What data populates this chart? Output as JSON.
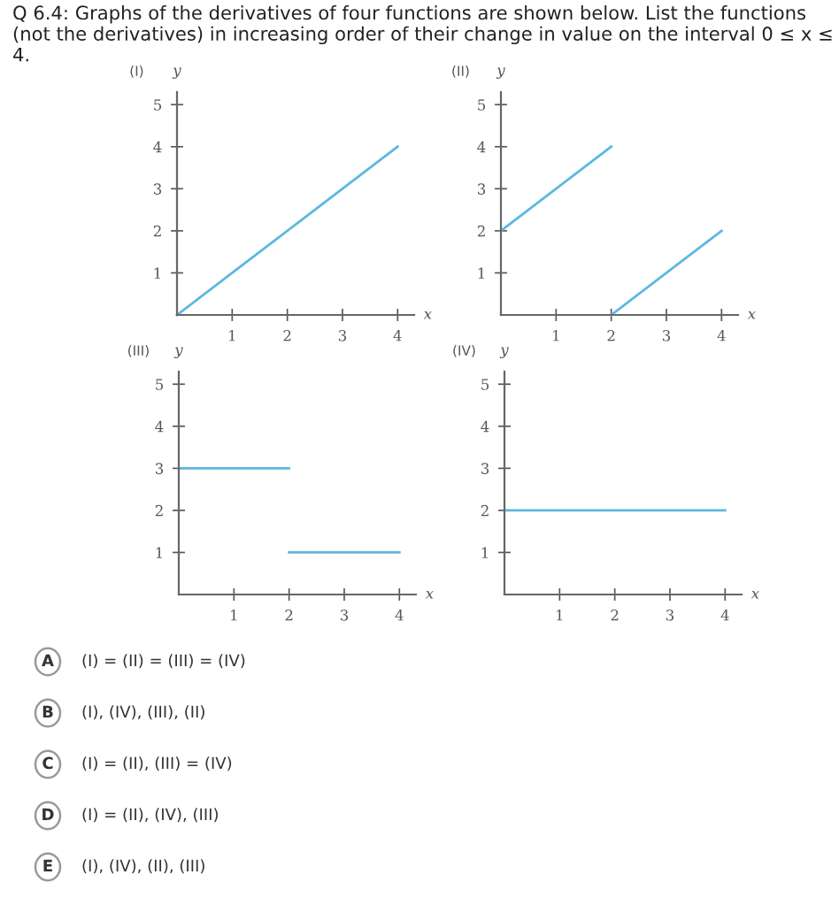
{
  "chart_data": [
    {
      "type": "line",
      "title": "(I)",
      "xlabel": "x",
      "ylabel": "y",
      "xlim": [
        0,
        4.3
      ],
      "ylim": [
        0,
        5.3
      ],
      "xticks": [
        1,
        2,
        3,
        4
      ],
      "yticks": [
        1,
        2,
        3,
        4,
        5
      ],
      "grid": false,
      "legend": false,
      "annotations": [
        "Q 6.4: Graphs of the derivatives of four functions are shown below. List the functions (not the derivatives) in increasing order of their change in value on the interval 0 ≤ x ≤ 4."
      ],
      "series": [
        {
          "color": "#5bb8e0",
          "x": [
            0,
            4
          ],
          "values": [
            0,
            4
          ]
        }
      ]
    },
    {
      "type": "line",
      "title": "(II)",
      "xlabel": "x",
      "ylabel": "y",
      "xlim": [
        0,
        4.3
      ],
      "ylim": [
        0,
        5.3
      ],
      "xticks": [
        1,
        2,
        3,
        4
      ],
      "yticks": [
        1,
        2,
        3,
        4,
        5
      ],
      "grid": false,
      "legend": false,
      "series": [
        {
          "color": "#5bb8e0",
          "x": [
            0,
            2
          ],
          "values": [
            2,
            4
          ]
        },
        {
          "color": "#5bb8e0",
          "x": [
            2,
            4
          ],
          "values": [
            0,
            2
          ]
        }
      ]
    },
    {
      "type": "line",
      "title": "(III)",
      "xlabel": "x",
      "ylabel": "y",
      "xlim": [
        0,
        4.3
      ],
      "ylim": [
        0,
        5.3
      ],
      "xticks": [
        1,
        2,
        3,
        4
      ],
      "yticks": [
        1,
        2,
        3,
        4,
        5
      ],
      "grid": false,
      "legend": false,
      "series": [
        {
          "color": "#5bb8e0",
          "x": [
            0,
            2
          ],
          "values": [
            3,
            3
          ]
        },
        {
          "color": "#5bb8e0",
          "x": [
            2,
            4
          ],
          "values": [
            1,
            1
          ]
        }
      ]
    },
    {
      "type": "line",
      "title": "(IV)",
      "xlabel": "x",
      "ylabel": "y",
      "xlim": [
        0,
        4.3
      ],
      "ylim": [
        0,
        5.3
      ],
      "xticks": [
        1,
        2,
        3,
        4
      ],
      "yticks": [
        1,
        2,
        3,
        4,
        5
      ],
      "grid": false,
      "legend": false,
      "annotations": [
        "A",
        "(I) = (II) = (III) = (IV)",
        "B",
        "(I), (IV), (III), (II)",
        "C",
        "(I) = (II), (III) = (IV)",
        "D",
        "(I) = (II), (IV), (III)",
        "E",
        "(I), (IV), (II), (III)"
      ],
      "series": [
        {
          "color": "#5bb8e0",
          "x": [
            0,
            4
          ],
          "values": [
            2,
            2
          ]
        }
      ]
    }
  ]
}
